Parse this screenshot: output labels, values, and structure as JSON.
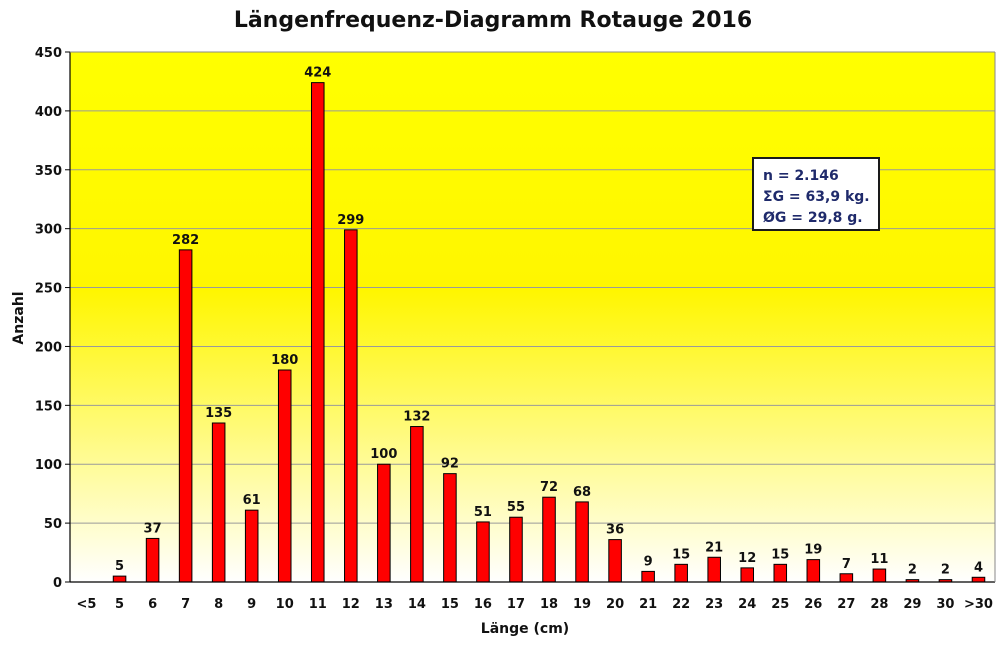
{
  "chart_data": {
    "type": "bar",
    "title": "Längenfrequenz-Diagramm Rotauge 2016",
    "xlabel": "Länge (cm)",
    "ylabel": "Anzahl",
    "ylim": [
      0,
      450
    ],
    "yticks": [
      0,
      50,
      100,
      150,
      200,
      250,
      300,
      350,
      400,
      450
    ],
    "categories": [
      "<5",
      "5",
      "6",
      "7",
      "8",
      "9",
      "10",
      "11",
      "12",
      "13",
      "14",
      "15",
      "16",
      "17",
      "18",
      "19",
      "20",
      "21",
      "22",
      "23",
      "24",
      "25",
      "26",
      "27",
      "28",
      "29",
      "30",
      ">30"
    ],
    "values": [
      0,
      5,
      37,
      282,
      135,
      61,
      180,
      424,
      299,
      100,
      132,
      92,
      51,
      55,
      72,
      68,
      36,
      9,
      15,
      21,
      12,
      15,
      19,
      7,
      11,
      2,
      2,
      4
    ],
    "value_labels": [
      "",
      "5",
      "37",
      "282",
      "135",
      "61",
      "180",
      "424",
      "299",
      "100",
      "132",
      "92",
      "51",
      "55",
      "72",
      "68",
      "36",
      "9",
      "15",
      "21",
      "12",
      "15",
      "19",
      "7",
      "11",
      "2",
      "2",
      "4"
    ],
    "grid": true,
    "colors": {
      "bar": "#ff0000",
      "bar_edge": "#000000",
      "background_top": "#ffff00",
      "background_bottom": "#ffffff",
      "gridline": "#9a9a9a",
      "stats_text": "#1f2a6b"
    },
    "annotations": {
      "stats": [
        "n = 2.146",
        "ΣG = 63,9 kg.",
        "ØG = 29,8 g."
      ]
    }
  }
}
